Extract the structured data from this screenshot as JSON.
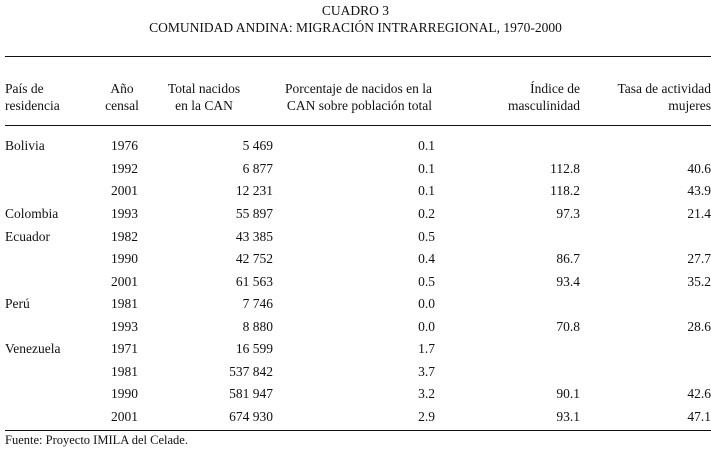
{
  "title": {
    "line1": "CUADRO 3",
    "line2": "COMUNIDAD ANDINA: MIGRACIÓN INTRARREGIONAL, 1970-2000"
  },
  "headers": {
    "country": [
      "País de",
      "residencia"
    ],
    "year": [
      "Año",
      "censal"
    ],
    "total": [
      "Total nacidos",
      "en la CAN"
    ],
    "percent": [
      "Porcentaje de nacidos en la",
      "CAN sobre población total"
    ],
    "masculinity": [
      "Índice de",
      "masculinidad"
    ],
    "activity": [
      "Tasa de actividad",
      "mujeres"
    ]
  },
  "rows": [
    {
      "country": "Bolivia",
      "year": "1976",
      "total": "5 469",
      "percent": "0.1",
      "masculinity": "",
      "activity": ""
    },
    {
      "country": "",
      "year": "1992",
      "total": "6 877",
      "percent": "0.1",
      "masculinity": "112.8",
      "activity": "40.6"
    },
    {
      "country": "",
      "year": "2001",
      "total": "12 231",
      "percent": "0.1",
      "masculinity": "118.2",
      "activity": "43.9"
    },
    {
      "country": "Colombia",
      "year": "1993",
      "total": "55 897",
      "percent": "0.2",
      "masculinity": "97.3",
      "activity": "21.4"
    },
    {
      "country": "Ecuador",
      "year": "1982",
      "total": "43 385",
      "percent": "0.5",
      "masculinity": "",
      "activity": ""
    },
    {
      "country": "",
      "year": "1990",
      "total": "42 752",
      "percent": "0.4",
      "masculinity": "86.7",
      "activity": "27.7"
    },
    {
      "country": "",
      "year": "2001",
      "total": "61 563",
      "percent": "0.5",
      "masculinity": "93.4",
      "activity": "35.2"
    },
    {
      "country": "Perú",
      "year": "1981",
      "total": "7 746",
      "percent": "0.0",
      "masculinity": "",
      "activity": ""
    },
    {
      "country": "",
      "year": "1993",
      "total": "8 880",
      "percent": "0.0",
      "masculinity": "70.8",
      "activity": "28.6"
    },
    {
      "country": "Venezuela",
      "year": "1971",
      "total": "16 599",
      "percent": "1.7",
      "masculinity": "",
      "activity": ""
    },
    {
      "country": "",
      "year": "1981",
      "total": "537 842",
      "percent": "3.7",
      "masculinity": "",
      "activity": ""
    },
    {
      "country": "",
      "year": "1990",
      "total": "581 947",
      "percent": "3.2",
      "masculinity": "90.1",
      "activity": "42.6"
    },
    {
      "country": "",
      "year": "2001",
      "total": "674 930",
      "percent": "2.9",
      "masculinity": "93.1",
      "activity": "47.1"
    }
  ],
  "source": "Fuente: Proyecto IMILA del Celade."
}
